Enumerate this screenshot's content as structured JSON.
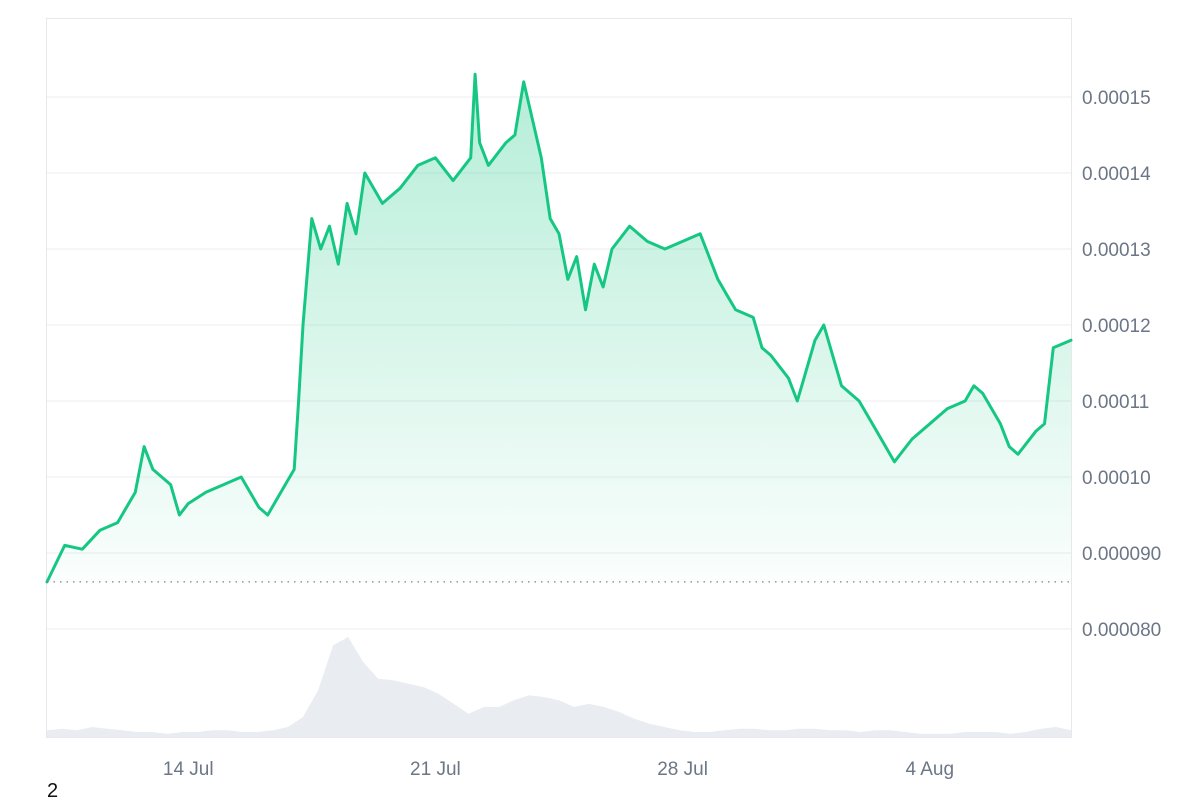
{
  "chart_data": {
    "type": "area",
    "x_range": [
      "2024-07-10",
      "2024-08-08"
    ],
    "ylim": [
      8e-05,
      0.00016
    ],
    "y_ticks": [
      "0.000080",
      "0.000090",
      "0.00010",
      "0.00011",
      "0.00012",
      "0.00013",
      "0.00014",
      "0.00015"
    ],
    "x_ticks": [
      {
        "label": "14 Jul",
        "date": "2024-07-14"
      },
      {
        "label": "21 Jul",
        "date": "2024-07-21"
      },
      {
        "label": "28 Jul",
        "date": "2024-07-28"
      },
      {
        "label": "4 Aug",
        "date": "2024-08-04"
      }
    ],
    "reference_line": 8.62e-05,
    "grid": true,
    "line_color": "#16c784",
    "series": [
      {
        "x": [
          "2024-07-10",
          "2024-07-10T12",
          "2024-07-11",
          "2024-07-11T12",
          "2024-07-12",
          "2024-07-12T12",
          "2024-07-12T18",
          "2024-07-13",
          "2024-07-13T12",
          "2024-07-13T18",
          "2024-07-14",
          "2024-07-14T12",
          "2024-07-15",
          "2024-07-15T12",
          "2024-07-16",
          "2024-07-16T06",
          "2024-07-16T12",
          "2024-07-16T18",
          "2024-07-17",
          "2024-07-17T03",
          "2024-07-17T06",
          "2024-07-17T12",
          "2024-07-17T18",
          "2024-07-18",
          "2024-07-18T06",
          "2024-07-18T12",
          "2024-07-18T18",
          "2024-07-19",
          "2024-07-19T12",
          "2024-07-20",
          "2024-07-20T12",
          "2024-07-21",
          "2024-07-21T12",
          "2024-07-22",
          "2024-07-22T03",
          "2024-07-22T06",
          "2024-07-22T12",
          "2024-07-23",
          "2024-07-23T06",
          "2024-07-23T12",
          "2024-07-23T18",
          "2024-07-24",
          "2024-07-24T06",
          "2024-07-24T12",
          "2024-07-24T18",
          "2024-07-25",
          "2024-07-25T06",
          "2024-07-25T12",
          "2024-07-25T18",
          "2024-07-26",
          "2024-07-26T12",
          "2024-07-27",
          "2024-07-27T12",
          "2024-07-28",
          "2024-07-28T12",
          "2024-07-29",
          "2024-07-29T06",
          "2024-07-29T12",
          "2024-07-30",
          "2024-07-30T06",
          "2024-07-30T12",
          "2024-07-31",
          "2024-07-31T06",
          "2024-07-31T12",
          "2024-07-31T18",
          "2024-08-01",
          "2024-08-01T12",
          "2024-08-02",
          "2024-08-02T06",
          "2024-08-02T12",
          "2024-08-03",
          "2024-08-03T12",
          "2024-08-04",
          "2024-08-04T12",
          "2024-08-05",
          "2024-08-05T06",
          "2024-08-05T12",
          "2024-08-06",
          "2024-08-06T06",
          "2024-08-06T12",
          "2024-08-07",
          "2024-08-07T06",
          "2024-08-07T12",
          "2024-08-08"
        ],
        "values": [
          8.62e-05,
          9.1e-05,
          9.05e-05,
          9.3e-05,
          9.4e-05,
          9.8e-05,
          0.000104,
          0.000101,
          9.9e-05,
          9.5e-05,
          9.65e-05,
          9.8e-05,
          9.9e-05,
          0.0001,
          9.6e-05,
          9.5e-05,
          9.7e-05,
          9.9e-05,
          0.000101,
          0.00011,
          0.00012,
          0.000134,
          0.00013,
          0.000133,
          0.000128,
          0.000136,
          0.000132,
          0.00014,
          0.000136,
          0.000138,
          0.000141,
          0.000142,
          0.000139,
          0.000142,
          0.000153,
          0.000144,
          0.000141,
          0.000144,
          0.000145,
          0.000152,
          0.000147,
          0.000142,
          0.000134,
          0.000132,
          0.000126,
          0.000129,
          0.000122,
          0.000128,
          0.000125,
          0.00013,
          0.000133,
          0.000131,
          0.00013,
          0.000131,
          0.000132,
          0.000126,
          0.000124,
          0.000122,
          0.000121,
          0.000117,
          0.000116,
          0.000113,
          0.00011,
          0.000114,
          0.000118,
          0.00012,
          0.000112,
          0.00011,
          0.000108,
          0.000106,
          0.000102,
          0.000105,
          0.000107,
          0.000109,
          0.00011,
          0.000112,
          0.000111,
          0.000107,
          0.000104,
          0.000103,
          0.000106,
          0.000107,
          0.000117,
          0.000118
        ]
      }
    ],
    "volume": [
      4,
      5,
      4,
      6,
      5,
      4,
      3,
      3,
      2,
      3,
      3,
      4,
      4,
      3,
      3,
      4,
      6,
      12,
      28,
      55,
      60,
      45,
      35,
      34,
      32,
      30,
      26,
      20,
      14,
      18,
      18,
      22,
      25,
      24,
      22,
      18,
      20,
      18,
      15,
      11,
      8,
      6,
      4,
      3,
      3,
      4,
      5,
      5,
      4,
      4,
      5,
      5,
      4,
      4,
      3,
      4,
      4,
      3,
      2,
      2,
      2,
      3,
      3,
      3,
      2,
      3,
      5,
      6,
      4
    ]
  },
  "footnote": "2"
}
